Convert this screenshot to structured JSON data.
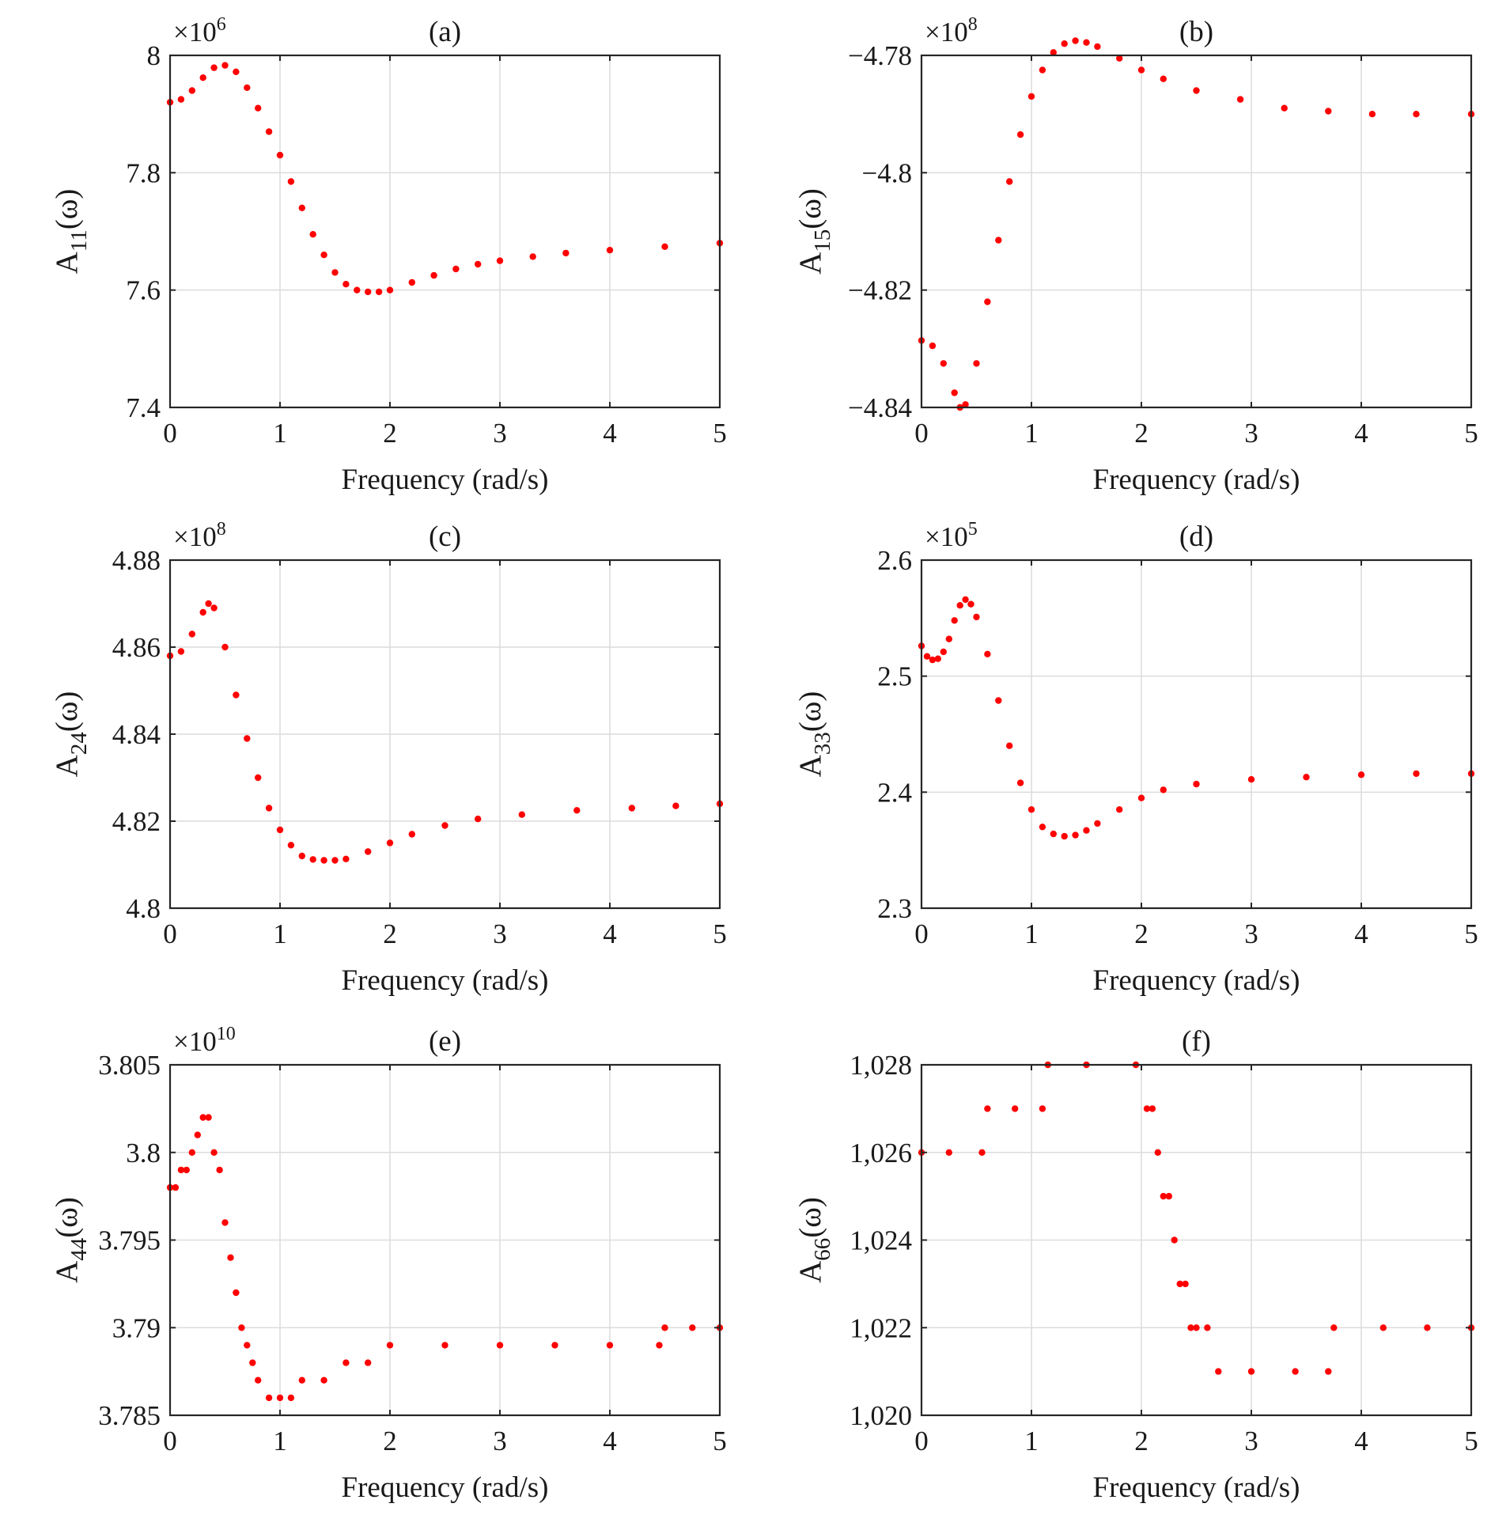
{
  "chart_data": [
    {
      "type": "scatter",
      "panel": "(a)",
      "title": "(a)",
      "xlabel": "Frequency (rad/s)",
      "ylabel": {
        "main": "A",
        "sub": "11",
        "suffix": "(ω)"
      },
      "exponent": {
        "base": "×10",
        "power": "6"
      },
      "xlim": [
        0,
        5
      ],
      "ylim": [
        7.4,
        8.0
      ],
      "xticks": [
        0,
        1,
        2,
        3,
        4,
        5
      ],
      "xtick_labels": [
        "0",
        "1",
        "2",
        "3",
        "4",
        "5"
      ],
      "yticks": [
        7.4,
        7.6,
        7.8,
        8.0
      ],
      "ytick_labels": [
        "7.4",
        "7.6",
        "7.8",
        "8"
      ],
      "series": [
        {
          "name": "A11",
          "color": "#ff0000",
          "x": [
            0,
            0.1,
            0.2,
            0.3,
            0.4,
            0.5,
            0.6,
            0.7,
            0.8,
            0.9,
            1.0,
            1.1,
            1.2,
            1.3,
            1.4,
            1.5,
            1.6,
            1.7,
            1.8,
            1.9,
            2.0,
            2.2,
            2.4,
            2.6,
            2.8,
            3.0,
            3.3,
            3.6,
            4.0,
            4.5,
            5.0
          ],
          "y": [
            7.92,
            7.925,
            7.94,
            7.962,
            7.979,
            7.983,
            7.972,
            7.945,
            7.91,
            7.87,
            7.83,
            7.785,
            7.74,
            7.695,
            7.66,
            7.63,
            7.61,
            7.6,
            7.597,
            7.597,
            7.6,
            7.613,
            7.625,
            7.636,
            7.644,
            7.65,
            7.657,
            7.663,
            7.668,
            7.674,
            7.68
          ]
        }
      ]
    },
    {
      "type": "scatter",
      "panel": "(b)",
      "title": "(b)",
      "xlabel": "Frequency (rad/s)",
      "ylabel": {
        "main": "A",
        "sub": "15",
        "suffix": "(ω)"
      },
      "exponent": {
        "base": "×10",
        "power": "8"
      },
      "xlim": [
        0,
        5
      ],
      "ylim": [
        -4.84,
        -4.78
      ],
      "xticks": [
        0,
        1,
        2,
        3,
        4,
        5
      ],
      "xtick_labels": [
        "0",
        "1",
        "2",
        "3",
        "4",
        "5"
      ],
      "yticks": [
        -4.84,
        -4.82,
        -4.8,
        -4.78
      ],
      "ytick_labels": [
        "−4.84",
        "−4.82",
        "−4.8",
        "−4.78"
      ],
      "series": [
        {
          "name": "A15",
          "color": "#ff0000",
          "x": [
            0,
            0.1,
            0.2,
            0.3,
            0.35,
            0.4,
            0.5,
            0.6,
            0.7,
            0.8,
            0.9,
            1.0,
            1.1,
            1.2,
            1.3,
            1.4,
            1.5,
            1.6,
            1.8,
            2.0,
            2.2,
            2.5,
            2.9,
            3.3,
            3.7,
            4.1,
            4.5,
            5.0
          ],
          "y": [
            -4.8286,
            -4.8295,
            -4.8325,
            -4.8375,
            -4.84,
            -4.8395,
            -4.8325,
            -4.822,
            -4.8115,
            -4.8015,
            -4.7935,
            -4.787,
            -4.7825,
            -4.7795,
            -4.778,
            -4.7775,
            -4.7778,
            -4.7785,
            -4.7805,
            -4.7825,
            -4.784,
            -4.786,
            -4.7875,
            -4.789,
            -4.7895,
            -4.79,
            -4.79,
            -4.79
          ]
        }
      ]
    },
    {
      "type": "scatter",
      "panel": "(c)",
      "title": "(c)",
      "xlabel": "Frequency (rad/s)",
      "ylabel": {
        "main": "A",
        "sub": "24",
        "suffix": "(ω)"
      },
      "exponent": {
        "base": "×10",
        "power": "8"
      },
      "xlim": [
        0,
        5
      ],
      "ylim": [
        4.8,
        4.88
      ],
      "xticks": [
        0,
        1,
        2,
        3,
        4,
        5
      ],
      "xtick_labels": [
        "0",
        "1",
        "2",
        "3",
        "4",
        "5"
      ],
      "yticks": [
        4.8,
        4.82,
        4.84,
        4.86,
        4.88
      ],
      "ytick_labels": [
        "4.8",
        "4.82",
        "4.84",
        "4.86",
        "4.88"
      ],
      "series": [
        {
          "name": "A24",
          "color": "#ff0000",
          "x": [
            0,
            0.1,
            0.2,
            0.3,
            0.35,
            0.4,
            0.5,
            0.6,
            0.7,
            0.8,
            0.9,
            1.0,
            1.1,
            1.2,
            1.3,
            1.4,
            1.5,
            1.6,
            1.8,
            2.0,
            2.2,
            2.5,
            2.8,
            3.2,
            3.7,
            4.2,
            4.6,
            5.0
          ],
          "y": [
            4.858,
            4.859,
            4.863,
            4.868,
            4.87,
            4.869,
            4.86,
            4.849,
            4.839,
            4.83,
            4.823,
            4.818,
            4.8145,
            4.812,
            4.8112,
            4.811,
            4.811,
            4.8113,
            4.813,
            4.815,
            4.817,
            4.819,
            4.8205,
            4.8215,
            4.8225,
            4.823,
            4.8235,
            4.824
          ]
        }
      ]
    },
    {
      "type": "scatter",
      "panel": "(d)",
      "title": "(d)",
      "xlabel": "Frequency (rad/s)",
      "ylabel": {
        "main": "A",
        "sub": "33",
        "suffix": "(ω)"
      },
      "exponent": {
        "base": "×10",
        "power": "5"
      },
      "xlim": [
        0,
        5
      ],
      "ylim": [
        2.3,
        2.6
      ],
      "xticks": [
        0,
        1,
        2,
        3,
        4,
        5
      ],
      "xtick_labels": [
        "0",
        "1",
        "2",
        "3",
        "4",
        "5"
      ],
      "yticks": [
        2.3,
        2.4,
        2.5,
        2.6
      ],
      "ytick_labels": [
        "2.3",
        "2.4",
        "2.5",
        "2.6"
      ],
      "series": [
        {
          "name": "A33",
          "color": "#ff0000",
          "x": [
            0,
            0.05,
            0.1,
            0.15,
            0.2,
            0.25,
            0.3,
            0.35,
            0.4,
            0.45,
            0.5,
            0.6,
            0.7,
            0.8,
            0.9,
            1.0,
            1.1,
            1.2,
            1.3,
            1.4,
            1.5,
            1.6,
            1.8,
            2.0,
            2.2,
            2.5,
            3.0,
            3.5,
            4.0,
            4.5,
            5.0
          ],
          "y": [
            2.526,
            2.517,
            2.514,
            2.515,
            2.521,
            2.532,
            2.548,
            2.561,
            2.566,
            2.562,
            2.551,
            2.519,
            2.479,
            2.44,
            2.408,
            2.385,
            2.37,
            2.364,
            2.362,
            2.363,
            2.367,
            2.373,
            2.385,
            2.395,
            2.402,
            2.407,
            2.411,
            2.413,
            2.415,
            2.416,
            2.416
          ]
        }
      ]
    },
    {
      "type": "scatter",
      "panel": "(e)",
      "title": "(e)",
      "xlabel": "Frequency (rad/s)",
      "ylabel": {
        "main": "A",
        "sub": "44",
        "suffix": "(ω)"
      },
      "exponent": {
        "base": "×10",
        "power": "10"
      },
      "xlim": [
        0,
        5
      ],
      "ylim": [
        3.785,
        3.805
      ],
      "xticks": [
        0,
        1,
        2,
        3,
        4,
        5
      ],
      "xtick_labels": [
        "0",
        "1",
        "2",
        "3",
        "4",
        "5"
      ],
      "yticks": [
        3.785,
        3.79,
        3.795,
        3.8,
        3.805
      ],
      "ytick_labels": [
        "3.785",
        "3.79",
        "3.795",
        "3.8",
        "3.805"
      ],
      "series": [
        {
          "name": "A44",
          "color": "#ff0000",
          "x": [
            0,
            0.05,
            0.1,
            0.15,
            0.2,
            0.25,
            0.3,
            0.35,
            0.4,
            0.45,
            0.5,
            0.55,
            0.6,
            0.65,
            0.7,
            0.75,
            0.8,
            0.9,
            1.0,
            1.1,
            1.2,
            1.4,
            1.6,
            1.8,
            2.0,
            2.5,
            3.0,
            3.5,
            4.0,
            4.45,
            4.5,
            4.75,
            5.0
          ],
          "y": [
            3.798,
            3.798,
            3.799,
            3.799,
            3.8,
            3.801,
            3.802,
            3.802,
            3.8,
            3.799,
            3.796,
            3.794,
            3.792,
            3.79,
            3.789,
            3.788,
            3.787,
            3.786,
            3.786,
            3.786,
            3.787,
            3.787,
            3.788,
            3.788,
            3.789,
            3.789,
            3.789,
            3.789,
            3.789,
            3.789,
            3.79,
            3.79,
            3.79
          ]
        }
      ]
    },
    {
      "type": "scatter",
      "panel": "(f)",
      "title": "(f)",
      "xlabel": "Frequency (rad/s)",
      "ylabel": {
        "main": "A",
        "sub": "66",
        "suffix": "(ω)"
      },
      "exponent": null,
      "xlim": [
        0,
        5
      ],
      "ylim": [
        1020,
        1028
      ],
      "xticks": [
        0,
        1,
        2,
        3,
        4,
        5
      ],
      "xtick_labels": [
        "0",
        "1",
        "2",
        "3",
        "4",
        "5"
      ],
      "yticks": [
        1020,
        1022,
        1024,
        1026,
        1028
      ],
      "ytick_labels": [
        "1,020",
        "1,022",
        "1,024",
        "1,026",
        "1,028"
      ],
      "series": [
        {
          "name": "A66",
          "color": "#ff0000",
          "x": [
            0,
            0.25,
            0.55,
            0.6,
            0.85,
            1.1,
            1.15,
            1.5,
            1.95,
            2.05,
            2.1,
            2.15,
            2.2,
            2.25,
            2.3,
            2.35,
            2.4,
            2.45,
            2.5,
            2.6,
            2.7,
            3.0,
            3.4,
            3.7,
            3.75,
            4.2,
            4.6,
            5.0
          ],
          "y": [
            1026,
            1026,
            1026,
            1027,
            1027,
            1027,
            1028,
            1028,
            1028,
            1027,
            1027,
            1026,
            1025,
            1025,
            1024,
            1023,
            1023,
            1022,
            1022,
            1022,
            1021,
            1021,
            1021,
            1021,
            1022,
            1022,
            1022,
            1022
          ]
        }
      ]
    }
  ]
}
